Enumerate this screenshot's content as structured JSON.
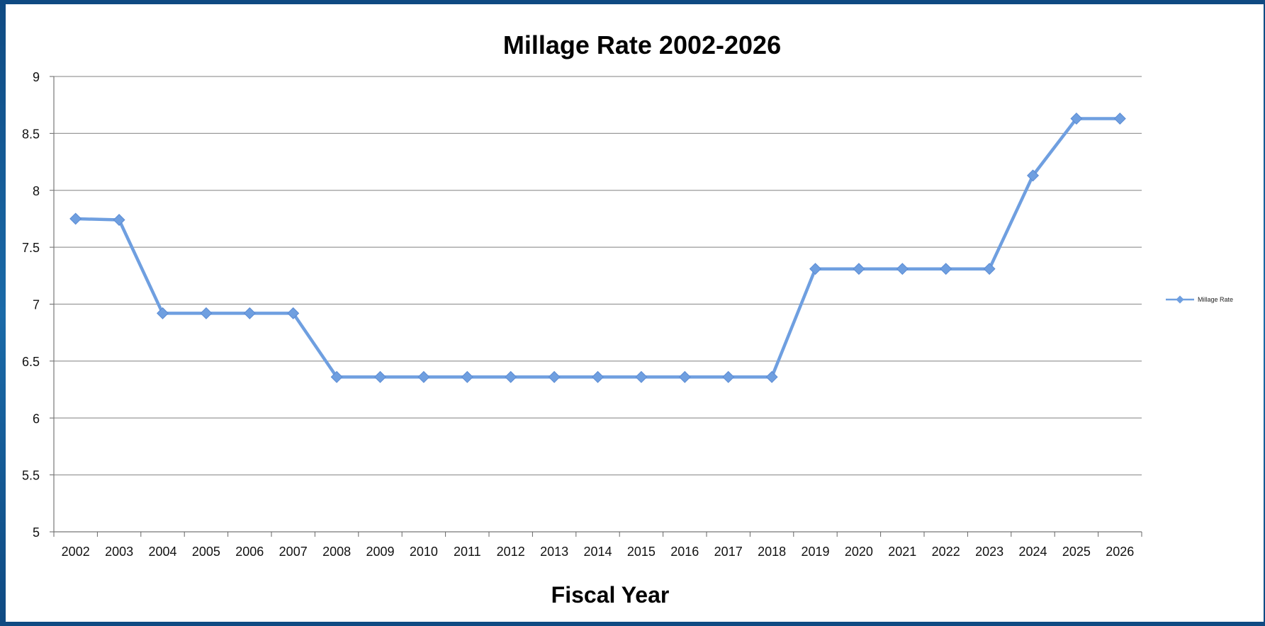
{
  "chart_data": {
    "type": "line",
    "title": "Millage Rate 2002-2026",
    "xlabel": "Fiscal Year",
    "ylabel": "",
    "ylim": [
      5,
      9
    ],
    "yticks": [
      5,
      5.5,
      6,
      6.5,
      7,
      7.5,
      8,
      8.5,
      9
    ],
    "grid": true,
    "legend_position": "right",
    "categories": [
      "2002",
      "2003",
      "2004",
      "2005",
      "2006",
      "2007",
      "2008",
      "2009",
      "2010",
      "2011",
      "2012",
      "2013",
      "2014",
      "2015",
      "2016",
      "2017",
      "2018",
      "2019",
      "2020",
      "2021",
      "2022",
      "2023",
      "2024",
      "2025",
      "2026"
    ],
    "series": [
      {
        "name": "Millage Rate",
        "color": "#6f9fe0",
        "values": [
          7.75,
          7.74,
          6.92,
          6.92,
          6.92,
          6.92,
          6.36,
          6.36,
          6.36,
          6.36,
          6.36,
          6.36,
          6.36,
          6.36,
          6.36,
          6.36,
          6.36,
          7.31,
          7.31,
          7.31,
          7.31,
          7.31,
          8.13,
          8.63,
          8.63
        ]
      }
    ]
  }
}
